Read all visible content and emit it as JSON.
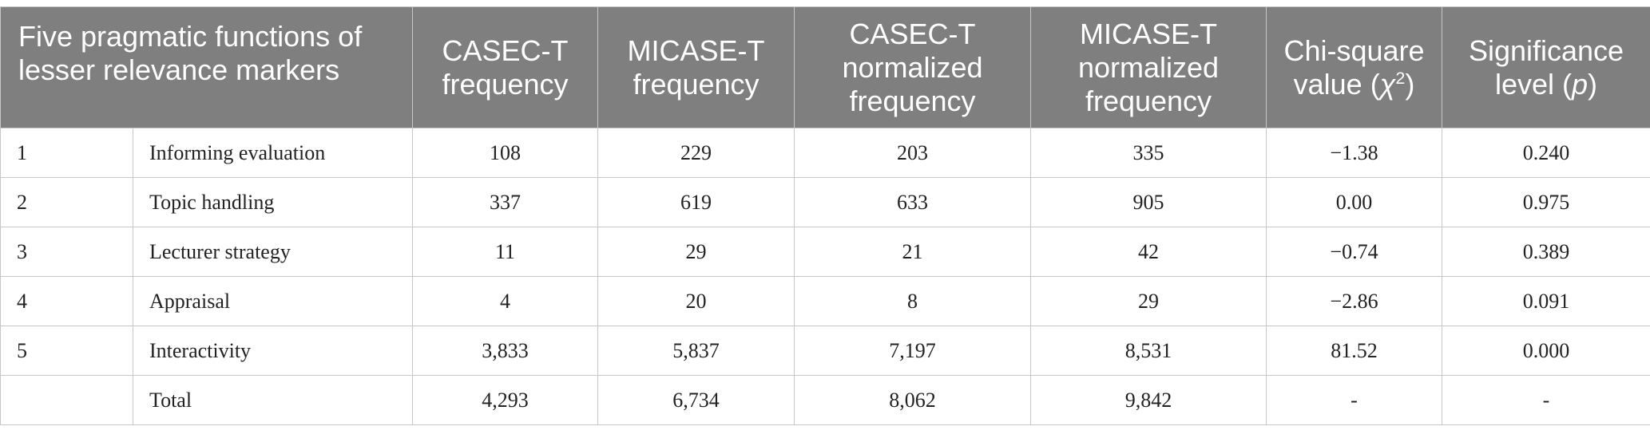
{
  "header": {
    "col_function": "Five pragmatic functions of lesser relevance markers",
    "col_casec_freq": "CASEC-T frequency",
    "col_micase_freq": "MICASE-T frequency",
    "col_casec_norm": "CASEC-T normalized frequency",
    "col_micase_norm": "MICASE-T normalized frequency",
    "col_chi_prefix": "Chi-square value (",
    "col_chi_symbol": "χ",
    "col_chi_sup": "2",
    "col_chi_suffix": ")",
    "col_sig_prefix": "Significance level (",
    "col_sig_symbol": "p",
    "col_sig_suffix": ")"
  },
  "rows": [
    {
      "num": "1",
      "label": "Informing evaluation",
      "casec_freq": "108",
      "micase_freq": "229",
      "casec_norm": "203",
      "micase_norm": "335",
      "chi": "−1.38",
      "sig": "0.240"
    },
    {
      "num": "2",
      "label": "Topic handling",
      "casec_freq": "337",
      "micase_freq": "619",
      "casec_norm": "633",
      "micase_norm": "905",
      "chi": "0.00",
      "sig": "0.975"
    },
    {
      "num": "3",
      "label": "Lecturer strategy",
      "casec_freq": "11",
      "micase_freq": "29",
      "casec_norm": "21",
      "micase_norm": "42",
      "chi": "−0.74",
      "sig": "0.389"
    },
    {
      "num": "4",
      "label": "Appraisal",
      "casec_freq": "4",
      "micase_freq": "20",
      "casec_norm": "8",
      "micase_norm": "29",
      "chi": "−2.86",
      "sig": "0.091"
    },
    {
      "num": "5",
      "label": "Interactivity",
      "casec_freq": "3,833",
      "micase_freq": "5,837",
      "casec_norm": "7,197",
      "micase_norm": "8,531",
      "chi": "81.52",
      "sig": "0.000"
    },
    {
      "num": "",
      "label": "Total",
      "casec_freq": "4,293",
      "micase_freq": "6,734",
      "casec_norm": "8,062",
      "micase_norm": "9,842",
      "chi": "-",
      "sig": "-"
    }
  ]
}
